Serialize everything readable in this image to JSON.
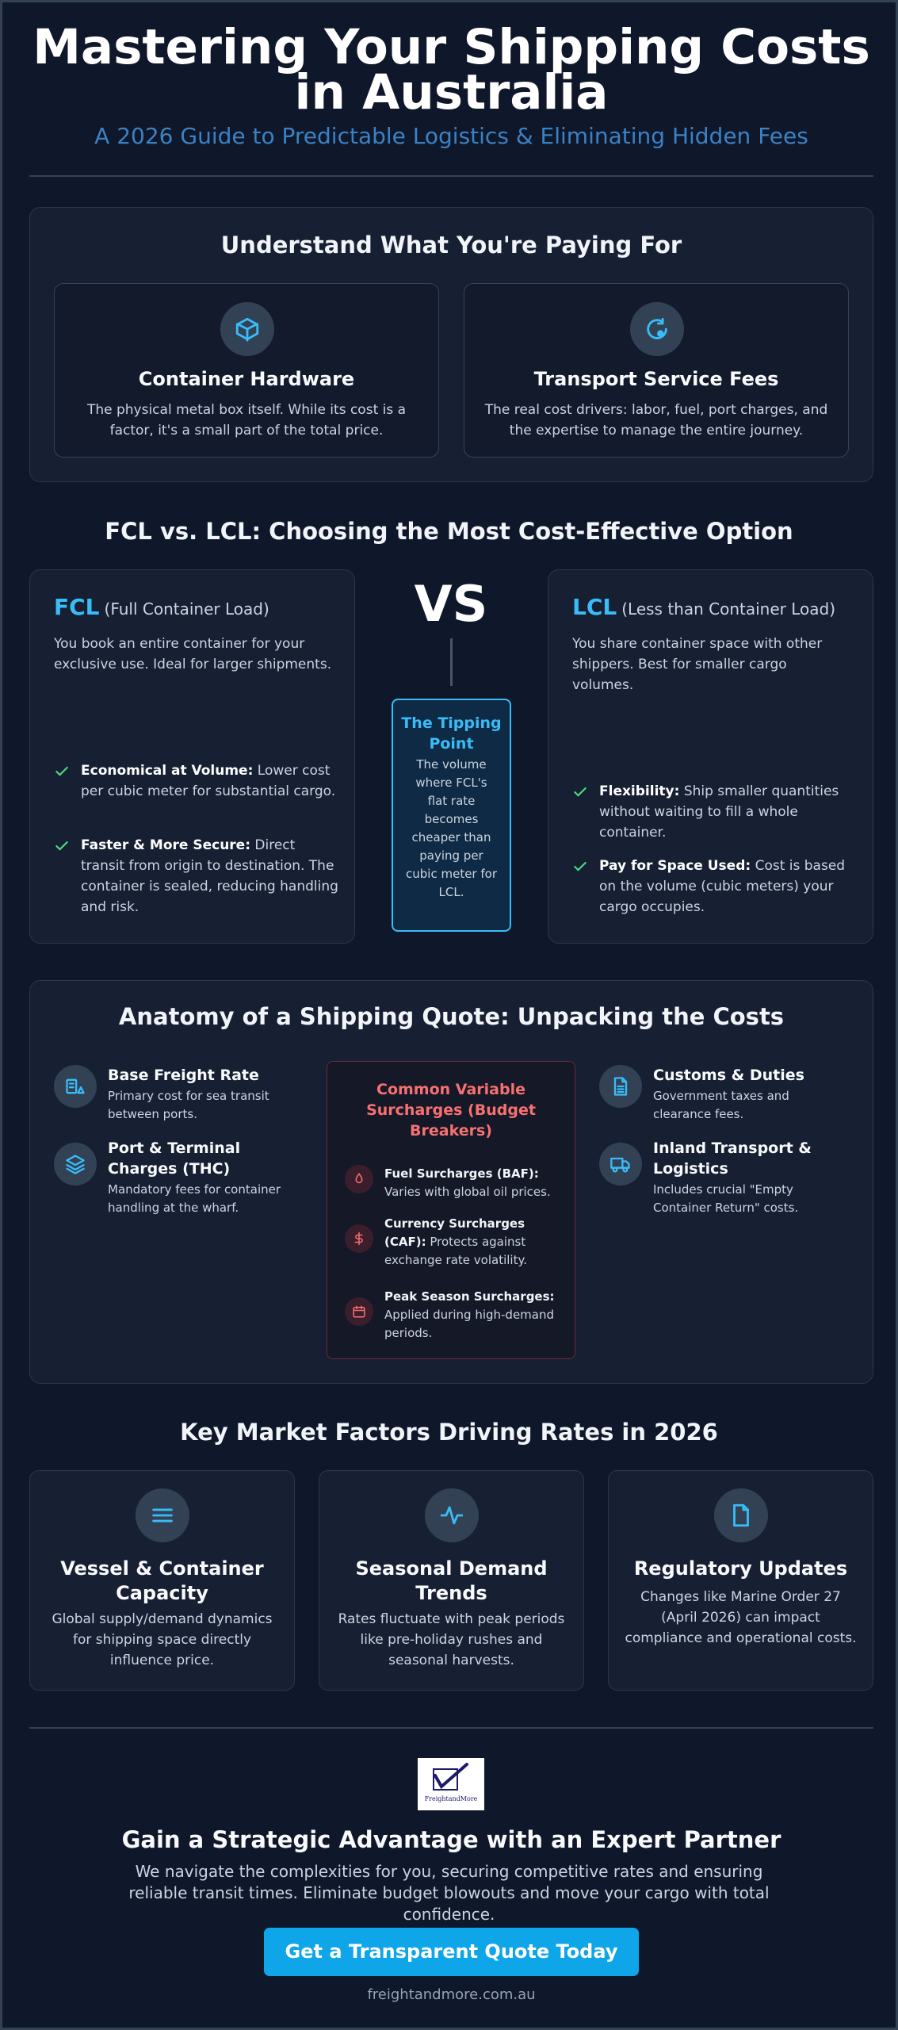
{
  "header": {
    "title": "Mastering Your Shipping Costs in Australia",
    "subtitle": "A 2026 Guide to Predictable Logistics & Eliminating Hidden Fees"
  },
  "understand": {
    "heading": "Understand What You're Paying For",
    "cards": [
      {
        "icon": "box-icon",
        "title": "Container Hardware",
        "text": "The physical metal box itself. While its cost is a factor, it's a small part of the total price."
      },
      {
        "icon": "refresh-icon",
        "title": "Transport Service Fees",
        "text": "The real cost drivers: labor, fuel, port charges, and the expertise to manage the entire journey."
      }
    ]
  },
  "compare": {
    "heading": "FCL vs. LCL: Choosing the Most Cost-Effective Option",
    "vs": "VS",
    "fcl": {
      "abbr": "FCL",
      "full": "(Full Container Load)",
      "desc": "You book an entire container for your exclusive use. Ideal for larger shipments.",
      "points": [
        {
          "bold": "Economical at Volume:",
          "text": " Lower cost per cubic meter for substantial cargo."
        },
        {
          "bold": "Faster & More Secure:",
          "text": " Direct transit from origin to destination. The container is sealed, reducing handling and risk."
        }
      ]
    },
    "lcl": {
      "abbr": "LCL",
      "full": "(Less than Container Load)",
      "desc": "You share container space with other shippers. Best for smaller cargo volumes.",
      "points": [
        {
          "bold": "Flexibility:",
          "text": " Ship smaller quantities without waiting to fill a whole container."
        },
        {
          "bold": "Pay for Space Used:",
          "text": " Cost is based on the volume (cubic meters) your cargo occupies."
        }
      ]
    },
    "tipping": {
      "title": "The Tipping Point",
      "text": "The volume where FCL's flat rate becomes cheaper than paying per cubic meter for LCL."
    }
  },
  "quote": {
    "heading": "Anatomy of a Shipping Quote: Unpacking the Costs",
    "left": [
      {
        "icon": "ship-icon",
        "title": "Base Freight Rate",
        "text": "Primary cost for sea transit between ports."
      },
      {
        "icon": "layers-icon",
        "title": "Port & Terminal Charges (THC)",
        "text": "Mandatory fees for container handling at the wharf."
      }
    ],
    "right": [
      {
        "icon": "document-icon",
        "title": "Customs & Duties",
        "text": "Government taxes and clearance fees."
      },
      {
        "icon": "truck-icon",
        "title": "Inland Transport & Logistics",
        "text": "Includes crucial \"Empty Container Return\" costs."
      }
    ],
    "surcharges": {
      "title": "Common Variable Surcharges (Budget Breakers)",
      "items": [
        {
          "icon": "fuel-icon",
          "bold": "Fuel Surcharges (BAF):",
          "text": " Varies with global oil prices."
        },
        {
          "icon": "dollar-icon",
          "bold": "Currency Surcharges (CAF):",
          "text": " Protects against exchange rate volatility."
        },
        {
          "icon": "calendar-icon",
          "bold": "Peak Season Surcharges:",
          "text": " Applied during high-demand periods."
        }
      ]
    }
  },
  "factors": {
    "heading": "Key Market Factors Driving Rates in 2026",
    "cards": [
      {
        "icon": "menu-icon",
        "title": "Vessel & Container Capacity",
        "text": "Global supply/demand dynamics for shipping space directly influence price."
      },
      {
        "icon": "pulse-icon",
        "title": "Seasonal Demand Trends",
        "text": "Rates fluctuate with peak periods like pre-holiday rushes and seasonal harvests."
      },
      {
        "icon": "file-icon",
        "title": "Regulatory Updates",
        "text": "Changes like Marine Order 27 (April 2026) can impact compliance and operational costs."
      }
    ]
  },
  "cta": {
    "logo_text": "FreightandMore",
    "title": "Gain a Strategic Advantage with an Expert Partner",
    "text": "We navigate the complexities for you, securing competitive rates and ensuring reliable transit times. Eliminate budget blowouts and move your cargo with total confidence.",
    "button": "Get a Transparent Quote Today",
    "site": "freightandmore.com.au"
  },
  "colors": {
    "background": "#0f172a",
    "panel": "#172033",
    "accent": "#38bdf8",
    "warning": "#f87171",
    "check": "#4ade80",
    "button": "#0ea5e9"
  }
}
